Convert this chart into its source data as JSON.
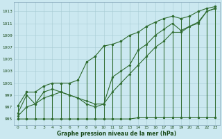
{
  "title": "Graphe pression niveau de la mer (hPa)",
  "background_color": "#cbe8f0",
  "grid_color": "#a8ccd4",
  "line_color": "#2d6a2d",
  "x_labels": [
    "0",
    "1",
    "2",
    "3",
    "4",
    "5",
    "6",
    "7",
    "8",
    "9",
    "10",
    "11",
    "12",
    "13",
    "14",
    "15",
    "16",
    "17",
    "18",
    "19",
    "20",
    "21",
    "22",
    "23"
  ],
  "x_values": [
    0,
    1,
    2,
    3,
    4,
    5,
    6,
    7,
    8,
    9,
    10,
    11,
    12,
    13,
    14,
    15,
    16,
    17,
    18,
    19,
    20,
    21,
    22,
    23
  ],
  "ylim": [
    994.0,
    1014.5
  ],
  "yticks": [
    995,
    997,
    999,
    1001,
    1003,
    1005,
    1007,
    1009,
    1011,
    1013
  ],
  "lower_values": [
    995.0,
    995.0,
    995.0,
    995.0,
    995.0,
    995.0,
    995.0,
    995.0,
    995.0,
    995.0,
    995.0,
    995.0,
    995.0,
    995.0,
    995.2,
    995.2,
    995.2,
    995.2,
    995.2,
    995.2,
    995.2,
    995.2,
    995.2,
    995.2
  ],
  "upper_values": [
    997.2,
    999.5,
    999.5,
    1000.5,
    1001.0,
    1001.0,
    1001.0,
    1001.5,
    1004.5,
    1005.5,
    1007.2,
    1007.5,
    1008.0,
    1009.0,
    1009.5,
    1010.5,
    1011.2,
    1011.8,
    1012.2,
    1011.8,
    1012.2,
    1013.0,
    1013.5,
    1013.8
  ],
  "line_upper": [
    997.2,
    999.5,
    999.5,
    1000.5,
    1001.0,
    1001.0,
    1001.0,
    1001.5,
    1004.5,
    1005.5,
    1007.2,
    1007.5,
    1008.0,
    1009.0,
    1009.5,
    1010.5,
    1011.2,
    1011.8,
    1012.2,
    1011.8,
    1012.2,
    1013.0,
    1013.5,
    1013.8
  ],
  "line_middle": [
    996.0,
    999.0,
    997.5,
    999.5,
    1000.0,
    999.5,
    999.0,
    998.5,
    998.0,
    997.5,
    997.5,
    1002.0,
    1003.0,
    1004.0,
    1006.5,
    1007.5,
    1009.0,
    1010.0,
    1011.0,
    1009.8,
    1010.5,
    1011.0,
    1013.0,
    1013.5
  ],
  "line_lower_diag": [
    995.5,
    997.0,
    997.5,
    998.5,
    999.0,
    999.5,
    999.0,
    998.5,
    997.5,
    997.0,
    997.5,
    999.5,
    1001.0,
    1002.5,
    1004.0,
    1005.5,
    1007.0,
    1008.0,
    1009.5,
    1009.5,
    1010.5,
    1011.2,
    1013.0,
    1013.5
  ]
}
